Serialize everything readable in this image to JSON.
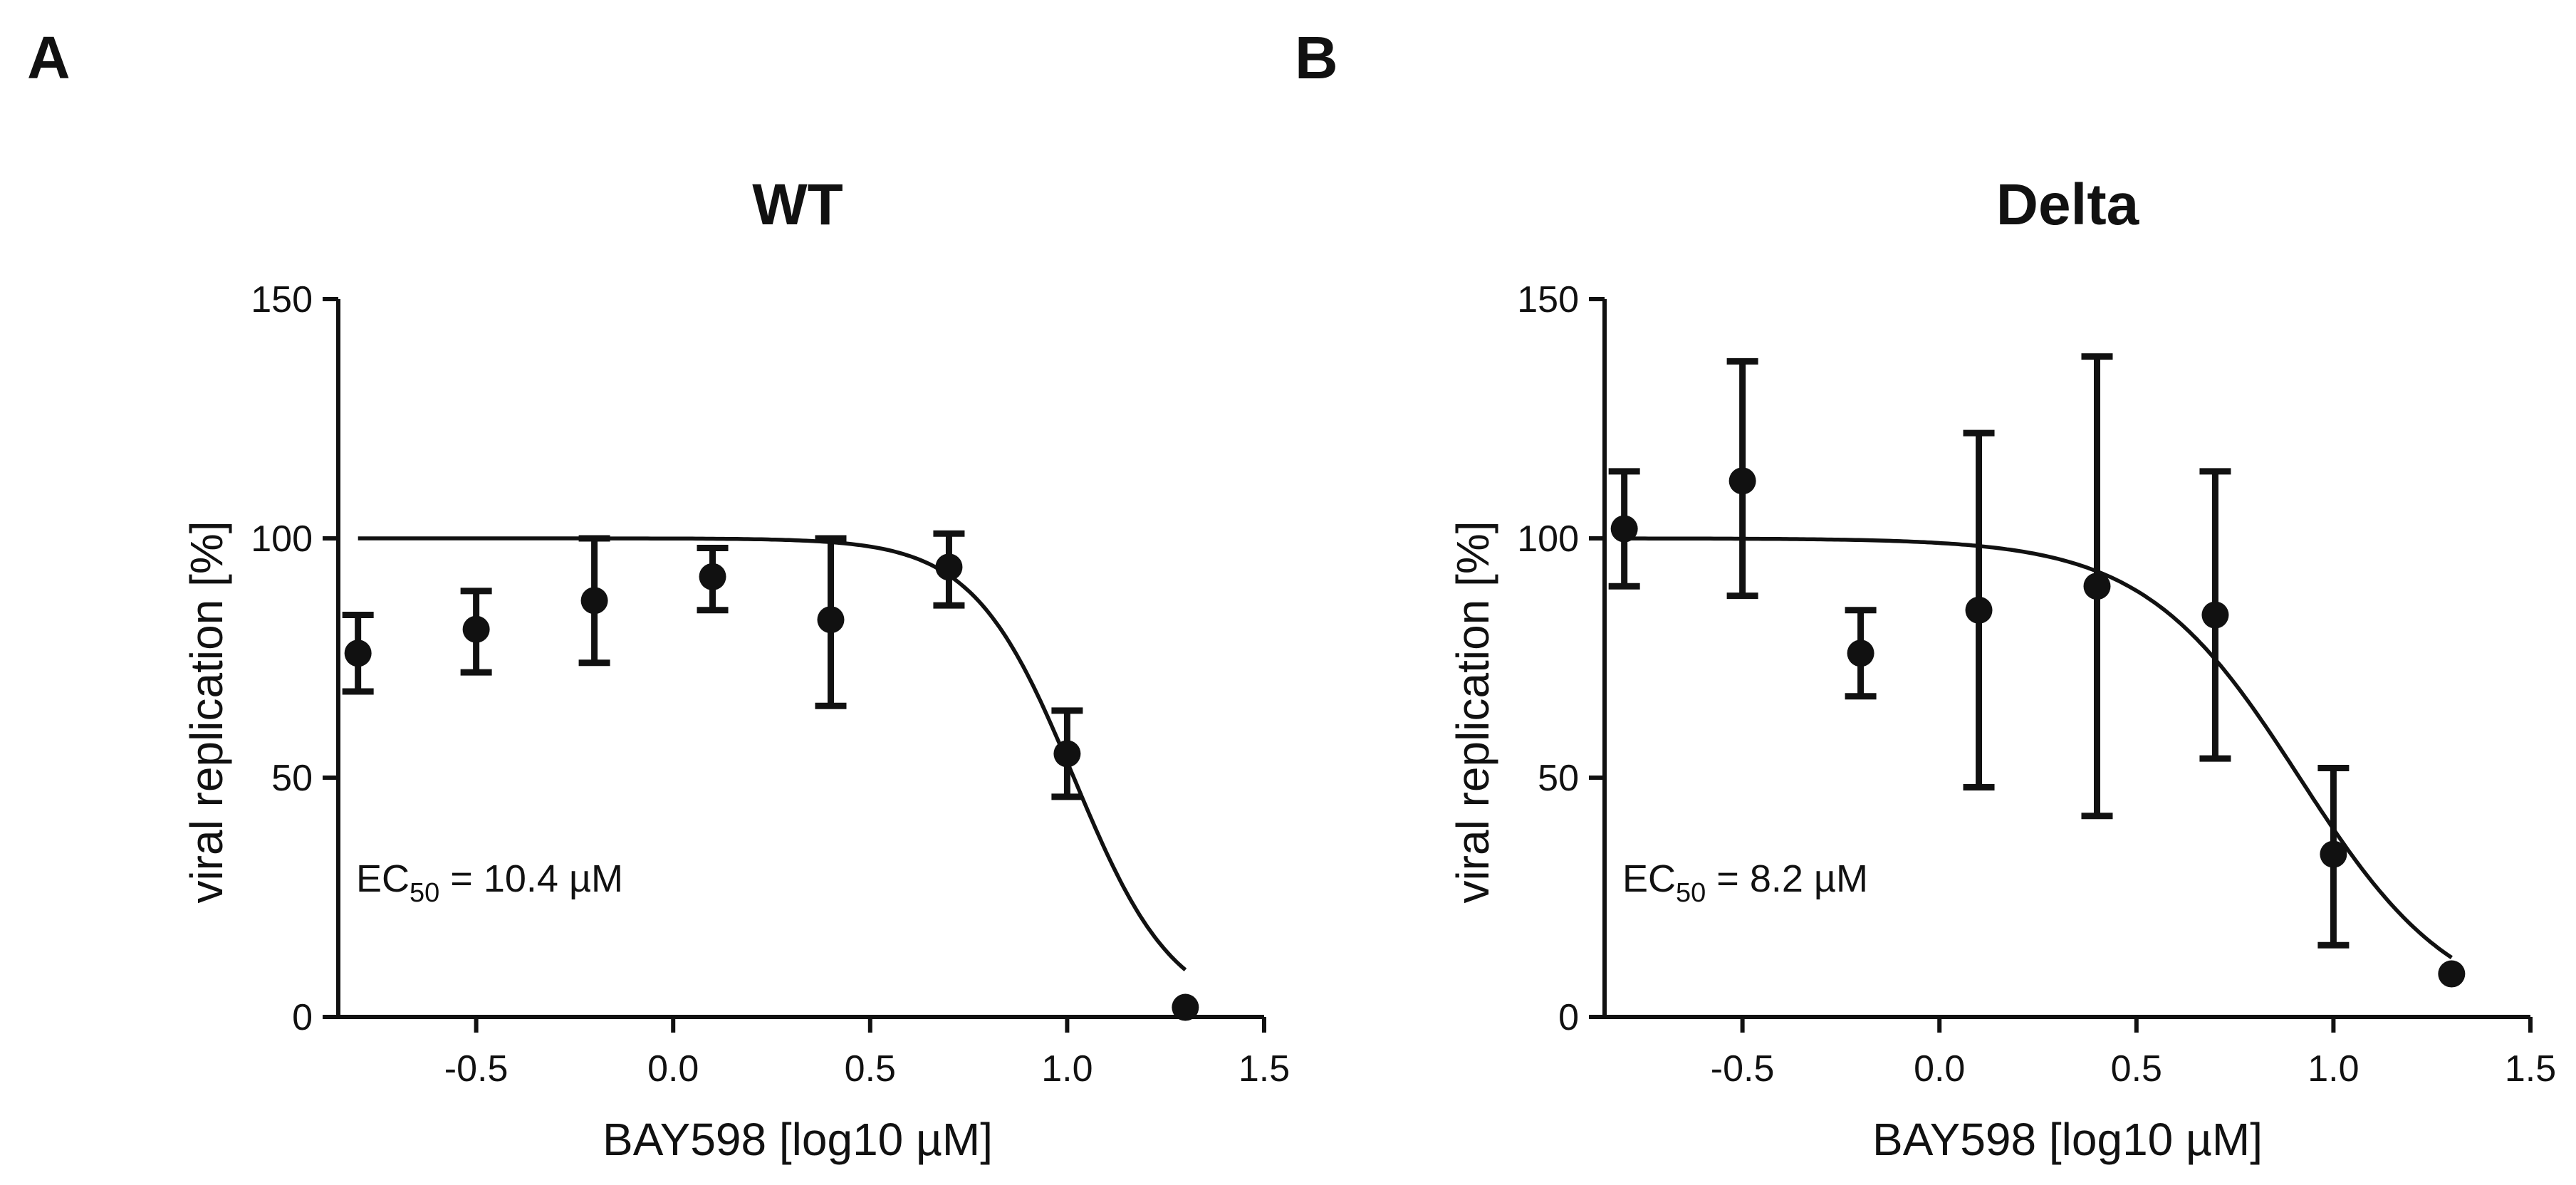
{
  "chart_data": [
    {
      "type": "scatter",
      "panel_label": "A",
      "title": "WT",
      "xlabel": "BAY598 [log10 µM]",
      "ylabel": "viral replication [%]",
      "xlim": [
        -0.85,
        1.5
      ],
      "ylim": [
        0,
        150
      ],
      "xticks": [
        -0.5,
        0.0,
        0.5,
        1.0,
        1.5
      ],
      "xtick_labels": [
        "-0.5",
        "0.0",
        "0.5",
        "1.0",
        "1.5"
      ],
      "yticks": [
        0,
        50,
        100,
        150
      ],
      "ytick_labels": [
        "0",
        "50",
        "100",
        "150"
      ],
      "annotation": {
        "prefix": "EC",
        "subscript": "50",
        "suffix": " = 10.4 µM"
      },
      "points": [
        {
          "x": -0.8,
          "y": 76,
          "err_low": 68,
          "err_high": 84
        },
        {
          "x": -0.5,
          "y": 81,
          "err_low": 72,
          "err_high": 89
        },
        {
          "x": -0.2,
          "y": 87,
          "err_low": 74,
          "err_high": 100
        },
        {
          "x": 0.1,
          "y": 92,
          "err_low": 85,
          "err_high": 98
        },
        {
          "x": 0.4,
          "y": 83,
          "err_low": 65,
          "err_high": 100
        },
        {
          "x": 0.7,
          "y": 94,
          "err_low": 86,
          "err_high": 101
        },
        {
          "x": 1.0,
          "y": 55,
          "err_low": 46,
          "err_high": 64
        },
        {
          "x": 1.3,
          "y": 2,
          "err_low": 2,
          "err_high": 2
        }
      ],
      "fit": {
        "top": 100,
        "bottom": 0,
        "log_ec50": 1.017,
        "hill_slope": 3.4,
        "x_start": -0.8,
        "x_end": 1.3
      }
    },
    {
      "type": "scatter",
      "panel_label": "B",
      "title": "Delta",
      "xlabel": "BAY598 [log10 µM]",
      "ylabel": "viral replication [%]",
      "xlim": [
        -0.85,
        1.5
      ],
      "ylim": [
        0,
        150
      ],
      "xticks": [
        -0.5,
        0.0,
        0.5,
        1.0,
        1.5
      ],
      "xtick_labels": [
        "-0.5",
        "0.0",
        "0.5",
        "1.0",
        "1.5"
      ],
      "yticks": [
        0,
        50,
        100,
        150
      ],
      "ytick_labels": [
        "0",
        "50",
        "100",
        "150"
      ],
      "annotation": {
        "prefix": "EC",
        "subscript": "50",
        "suffix": " = 8.2 µM"
      },
      "points": [
        {
          "x": -0.8,
          "y": 102,
          "err_low": 90,
          "err_high": 114
        },
        {
          "x": -0.5,
          "y": 112,
          "err_low": 88,
          "err_high": 137
        },
        {
          "x": -0.2,
          "y": 76,
          "err_low": 67,
          "err_high": 85
        },
        {
          "x": 0.1,
          "y": 85,
          "err_low": 48,
          "err_high": 122
        },
        {
          "x": 0.4,
          "y": 90,
          "err_low": 42,
          "err_high": 138
        },
        {
          "x": 0.7,
          "y": 84,
          "err_low": 54,
          "err_high": 114
        },
        {
          "x": 1.0,
          "y": 34,
          "err_low": 15,
          "err_high": 52
        },
        {
          "x": 1.3,
          "y": 9,
          "err_low": 9,
          "err_high": 9
        }
      ],
      "fit": {
        "top": 100,
        "bottom": 0,
        "log_ec50": 0.914,
        "hill_slope": 2.2,
        "x_start": -0.8,
        "x_end": 1.3
      }
    }
  ]
}
